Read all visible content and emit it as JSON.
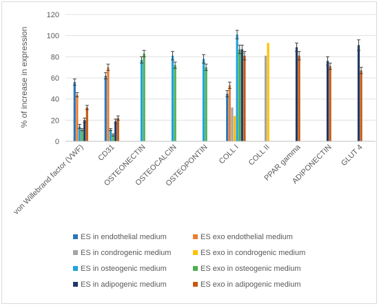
{
  "chart_data": {
    "type": "bar",
    "title": "",
    "xlabel": "",
    "ylabel": "% of increase in expression",
    "ylim": [
      0,
      120
    ],
    "yticks": [
      0,
      20,
      40,
      60,
      80,
      100,
      120
    ],
    "grid": true,
    "legend_position": "bottom",
    "categories": [
      "von Willebrand factor (VWF)",
      "CD31",
      "OSTEONECTIN",
      "OSTEOCALCIN",
      "OSTEOPONTIN",
      "COLL I",
      "COLL II",
      "PPAR gamma",
      "ADIPONECTIN",
      "GLUT 4"
    ],
    "series": [
      {
        "name": "ES in endothelial medium",
        "color": "#2e75b6",
        "values": [
          56,
          62,
          null,
          null,
          null,
          45,
          null,
          null,
          null,
          null
        ],
        "errors": [
          3,
          3,
          null,
          null,
          null,
          3,
          null,
          null,
          null,
          null
        ]
      },
      {
        "name": "ES exo endothelial medium",
        "color": "#ed7d31",
        "values": [
          44,
          70,
          null,
          null,
          null,
          53,
          null,
          null,
          null,
          null
        ],
        "errors": [
          2,
          3,
          null,
          null,
          null,
          3,
          null,
          null,
          null,
          null
        ]
      },
      {
        "name": "ES in condrogenic medium",
        "color": "#a5a5a5",
        "values": [
          null,
          null,
          null,
          null,
          null,
          32,
          81,
          null,
          null,
          null
        ],
        "errors": [
          null,
          null,
          null,
          null,
          null,
          null,
          null,
          null,
          null,
          null
        ]
      },
      {
        "name": "ES exo in condrogenic medium",
        "color": "#ffc000",
        "values": [
          null,
          null,
          null,
          null,
          null,
          24,
          93,
          null,
          null,
          null
        ],
        "errors": [
          null,
          null,
          null,
          null,
          null,
          null,
          null,
          null,
          null,
          null
        ]
      },
      {
        "name": "ES in osteogenic medium",
        "color": "#1fa3d9",
        "values": [
          14,
          11,
          77,
          81,
          78,
          101,
          null,
          null,
          null,
          null
        ],
        "errors": [
          2,
          1,
          3,
          4,
          4,
          4,
          null,
          null,
          null,
          null
        ]
      },
      {
        "name": "ES exo in osteogenic medium",
        "color": "#4caf50",
        "values": [
          11,
          6,
          83,
          72,
          70,
          87,
          null,
          null,
          null,
          null
        ],
        "errors": [
          1,
          1,
          3,
          3,
          3,
          4,
          null,
          null,
          null,
          null
        ]
      },
      {
        "name": "ES in adipogenic medium",
        "color": "#1f3864",
        "values": [
          20,
          19,
          null,
          null,
          null,
          87,
          null,
          89,
          76,
          91
        ],
        "errors": [
          2,
          2,
          null,
          null,
          null,
          4,
          null,
          4,
          4,
          5
        ]
      },
      {
        "name": "ES exo in adipogenic medium",
        "color": "#c55a11",
        "values": [
          32,
          22,
          null,
          null,
          null,
          81,
          null,
          81,
          71,
          67
        ],
        "errors": [
          2,
          2,
          null,
          null,
          null,
          4,
          null,
          4,
          3,
          3
        ]
      }
    ]
  }
}
